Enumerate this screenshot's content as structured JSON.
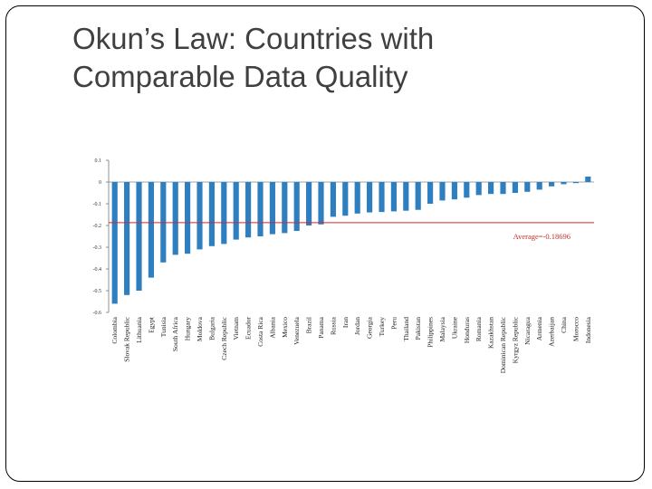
{
  "slide": {
    "title_line1": "Okun’s Law: Countries with",
    "title_line2": "Comparable Data Quality"
  },
  "chart_data": {
    "type": "bar",
    "title": "",
    "xlabel": "",
    "ylabel": "",
    "ylim": [
      -0.6,
      0.1
    ],
    "yticks": [
      "0.1",
      "0",
      "-0.1",
      "-0.2",
      "-0.3",
      "-0.4",
      "-0.5",
      "-0.6"
    ],
    "grid": false,
    "bar_color": "#2e7fc0",
    "average_line": {
      "value": -0.18696,
      "label": "Average=-0.18696",
      "color": "#d9242a"
    },
    "categories": [
      "Colombia",
      "Slovak Republic",
      "Lithuania",
      "Egypt",
      "Tunisia",
      "South Africa",
      "Hungary",
      "Moldova",
      "Bulgaria",
      "Czech Republic",
      "Vietnam",
      "Ecuador",
      "Costa Rica",
      "Albania",
      "Mexico",
      "Venezuela",
      "Brazil",
      "Panama",
      "Russia",
      "Iran",
      "Jordan",
      "Georgia",
      "Turkey",
      "Peru",
      "Thailand",
      "Pakistan",
      "Philippines",
      "Malaysia",
      "Ukraine",
      "Honduras",
      "Romania",
      "Kazakhstan",
      "Dominican Republic",
      "Kyrgyz Republic",
      "Nicaragua",
      "Armenia",
      "Azerbaijan",
      "China",
      "Morocco",
      "Indonesia"
    ],
    "values": [
      -0.56,
      -0.52,
      -0.5,
      -0.44,
      -0.37,
      -0.335,
      -0.33,
      -0.31,
      -0.295,
      -0.285,
      -0.265,
      -0.255,
      -0.25,
      -0.24,
      -0.235,
      -0.225,
      -0.2,
      -0.195,
      -0.16,
      -0.155,
      -0.145,
      -0.14,
      -0.138,
      -0.135,
      -0.132,
      -0.128,
      -0.1,
      -0.085,
      -0.08,
      -0.072,
      -0.06,
      -0.055,
      -0.055,
      -0.05,
      -0.045,
      -0.035,
      -0.02,
      -0.01,
      -0.005,
      0.025
    ]
  }
}
